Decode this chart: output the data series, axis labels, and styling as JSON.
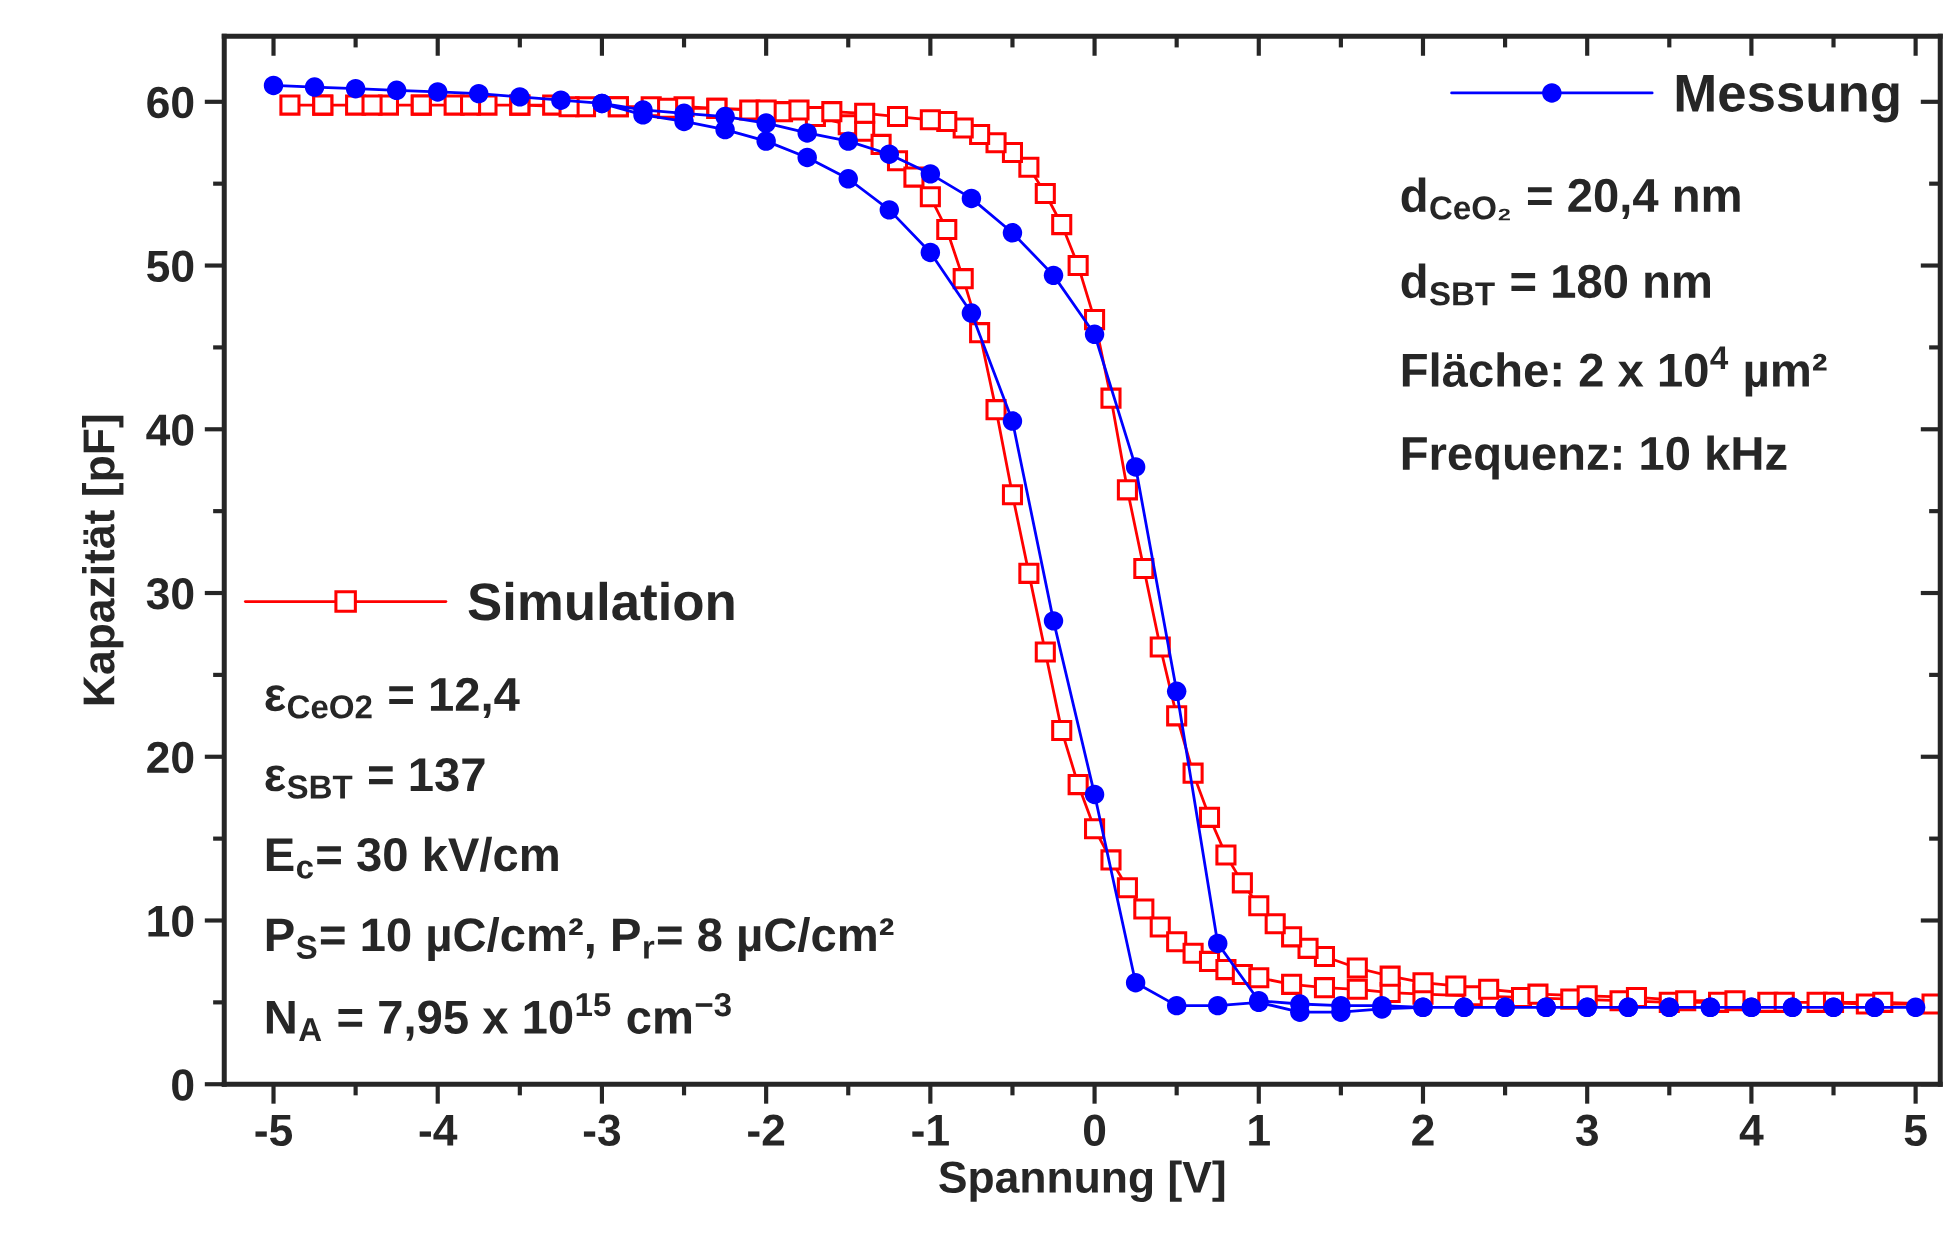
{
  "chart_data": {
    "type": "line",
    "xlabel": "Spannung [V]",
    "ylabel": "Kapazität [pF]",
    "xlim": [
      -5.3,
      5.15
    ],
    "ylim": [
      0,
      64
    ],
    "xticks": [
      -5,
      -4,
      -3,
      -2,
      -1,
      0,
      1,
      2,
      3,
      4,
      5
    ],
    "yticks": [
      0,
      10,
      20,
      30,
      40,
      50,
      60
    ],
    "grid": false,
    "legend": "top right",
    "series": [
      {
        "name": "Messung",
        "color": "#0000ff",
        "marker": "circle",
        "line_style": "solid",
        "x": [
          -5,
          -4.75,
          -4.5,
          -4.25,
          -4,
          -3.75,
          -3.5,
          -3.25,
          -3,
          -2.75,
          -2.5,
          -2.25,
          -2,
          -1.75,
          -1.5,
          -1.25,
          -1,
          -0.75,
          -0.5,
          -0.25,
          0,
          0.25,
          0.5,
          0.75,
          1,
          1.25,
          1.5,
          1.75,
          2,
          2.25,
          2.5,
          2.75,
          3,
          3.25,
          3.5,
          3.75,
          4,
          4.25,
          4.5,
          4.75,
          5,
          4.75,
          4.5,
          4.25,
          4,
          3.75,
          3.5,
          3.25,
          3,
          2.75,
          2.5,
          2.25,
          2,
          1.75,
          1.5,
          1.25,
          1,
          0.75,
          0.5,
          0.25,
          0,
          -0.25,
          -0.5,
          -0.75,
          -1,
          -1.25,
          -1.5,
          -1.75,
          -2,
          -2.25,
          -2.5,
          -2.75,
          -3
        ],
        "values": [
          61.0,
          60.9,
          60.8,
          60.7,
          60.6,
          60.5,
          60.3,
          60.1,
          59.9,
          59.2,
          58.8,
          58.3,
          57.6,
          56.6,
          55.3,
          53.4,
          50.8,
          47.1,
          40.5,
          28.3,
          17.7,
          6.2,
          4.8,
          4.8,
          5.0,
          4.4,
          4.4,
          4.6,
          4.7,
          4.7,
          4.7,
          4.7,
          4.7,
          4.7,
          4.7,
          4.7,
          4.7,
          4.7,
          4.7,
          4.7,
          4.7,
          4.7,
          4.7,
          4.7,
          4.7,
          4.7,
          4.7,
          4.7,
          4.7,
          4.7,
          4.7,
          4.7,
          4.7,
          4.8,
          4.8,
          4.9,
          5.1,
          8.6,
          24.0,
          37.7,
          45.8,
          49.4,
          52.0,
          54.1,
          55.6,
          56.8,
          57.6,
          58.1,
          58.7,
          59.1,
          59.3,
          59.5,
          59.9
        ]
      },
      {
        "name": "Simulation",
        "color": "#ff0000",
        "marker": "square",
        "line_style": "solid",
        "x": [
          -4.9,
          -4.7,
          -4.5,
          -4.3,
          -4.1,
          -3.9,
          -3.7,
          -3.5,
          -3.3,
          -3.1,
          -2.9,
          -2.7,
          -2.5,
          -2.3,
          -2.1,
          -1.9,
          -1.7,
          -1.5,
          -1.4,
          -1.3,
          -1.2,
          -1.1,
          -1.0,
          -0.9,
          -0.8,
          -0.7,
          -0.6,
          -0.5,
          -0.4,
          -0.3,
          -0.2,
          -0.1,
          0.0,
          0.1,
          0.2,
          0.3,
          0.4,
          0.5,
          0.6,
          0.7,
          0.8,
          0.9,
          1.0,
          1.2,
          1.4,
          1.6,
          1.8,
          2.0,
          2.3,
          2.6,
          2.9,
          3.2,
          3.5,
          3.8,
          4.1,
          4.4,
          4.7,
          5.1,
          4.8,
          4.5,
          4.2,
          3.9,
          3.6,
          3.3,
          3.0,
          2.7,
          2.4,
          2.2,
          2.0,
          1.8,
          1.6,
          1.4,
          1.3,
          1.2,
          1.1,
          1.0,
          0.9,
          0.8,
          0.7,
          0.6,
          0.5,
          0.4,
          0.3,
          0.2,
          0.1,
          0.0,
          -0.1,
          -0.2,
          -0.3,
          -0.4,
          -0.5,
          -0.6,
          -0.7,
          -0.8,
          -0.9,
          -1.0,
          -1.2,
          -1.4,
          -1.6,
          -1.8,
          -2.0,
          -2.3,
          -2.6,
          -2.9,
          -3.2,
          -3.5,
          -3.8,
          -4.1,
          -4.4,
          -4.7
        ],
        "values": [
          59.8,
          59.8,
          59.8,
          59.8,
          59.8,
          59.8,
          59.8,
          59.8,
          59.8,
          59.7,
          59.7,
          59.7,
          59.7,
          59.6,
          59.5,
          59.4,
          59.1,
          58.6,
          58.2,
          57.4,
          56.4,
          55.4,
          54.2,
          52.2,
          49.2,
          45.9,
          41.2,
          36.0,
          31.2,
          26.4,
          21.6,
          18.3,
          15.6,
          13.7,
          12.0,
          10.7,
          9.6,
          8.7,
          8.0,
          7.5,
          7.0,
          6.7,
          6.5,
          6.1,
          5.9,
          5.8,
          5.6,
          5.5,
          5.4,
          5.3,
          5.2,
          5.1,
          5.0,
          5.0,
          5.0,
          5.0,
          4.9,
          4.9,
          5.0,
          5.0,
          5.0,
          5.1,
          5.1,
          5.3,
          5.4,
          5.5,
          5.8,
          6.0,
          6.2,
          6.6,
          7.1,
          7.8,
          8.3,
          9.0,
          9.8,
          10.9,
          12.3,
          14.0,
          16.3,
          19.0,
          22.5,
          26.7,
          31.5,
          36.3,
          41.9,
          46.7,
          50.0,
          52.5,
          54.4,
          56.0,
          56.9,
          57.5,
          58.0,
          58.4,
          58.8,
          58.9,
          59.1,
          59.3,
          59.4,
          59.5,
          59.5,
          59.6,
          59.6,
          59.7,
          59.7,
          59.8,
          59.8,
          59.8,
          59.8,
          59.8
        ]
      }
    ],
    "annotations": [
      "d$_{CeO₂}$ = 20,4 nm",
      "d$_{SBT}$ = 180 nm",
      "Fläche: 2 x 10$^{4}$ µm²",
      "Frequenz: 10 kHz",
      "ε$_{CeO2}$ = 12,4",
      "ε$_{SBT}$ = 137",
      "E$_{c}$= 30 kV/cm",
      "P$_{S}$= 10 µC/cm², P$_{r}$= 8 µC/cm²",
      "N$_{A}$ = 7,95 x 10$^{15}$ cm$^{−3}$"
    ]
  }
}
